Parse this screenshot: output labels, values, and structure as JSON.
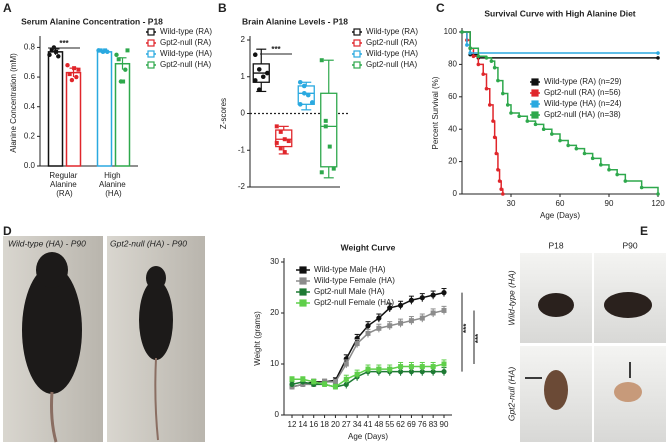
{
  "figure": {
    "panel_labels": [
      "A",
      "B",
      "C",
      "D",
      "E"
    ],
    "photo_labels": {
      "d": [
        "Wild-type (HA) - P90",
        "Gpt2-null (HA) - P90"
      ],
      "e_columns": [
        "P18",
        "P90"
      ],
      "e_rows": [
        "Wild-type (HA)",
        "Gpt2-null (HA)"
      ]
    }
  },
  "chart_data": [
    {
      "type": "bar",
      "title": "Serum Alanine Concentration - P18",
      "y_label": "Alanine Concentration (mM)",
      "categories": [
        "Regular Alanine (RA)",
        "High Alanine (HA)"
      ],
      "series": [
        {
          "name": "Wild-type (RA)",
          "color": "#111111",
          "values": [
            0.77,
            null
          ],
          "errors": [
            0.02,
            null
          ],
          "points": [
            [
              0.75,
              0.78,
              0.8,
              0.77,
              0.74
            ],
            null
          ]
        },
        {
          "name": "Gpt2-null (RA)",
          "color": "#e0262b",
          "values": [
            0.63,
            null
          ],
          "errors": [
            0.03,
            null
          ],
          "points": [
            [
              0.68,
              0.62,
              0.58,
              0.66,
              0.6,
              0.65
            ],
            null
          ]
        },
        {
          "name": "Wild-type (HA)",
          "color": "#2aa9e0",
          "values": [
            null,
            0.77
          ],
          "errors": [
            null,
            0.01
          ],
          "points": [
            null,
            [
              0.78,
              0.78,
              0.77,
              0.78,
              0.77
            ]
          ]
        },
        {
          "name": "Gpt2-null (HA)",
          "color": "#2ea84c",
          "values": [
            null,
            0.69
          ],
          "errors": [
            null,
            0.04
          ],
          "points": [
            null,
            [
              0.75,
              0.72,
              0.57,
              0.57,
              0.65,
              0.78
            ]
          ]
        }
      ],
      "ylim": [
        0,
        0.85
      ],
      "yticks": [
        {
          "value": 0,
          "label": "0.0"
        },
        0.2,
        0.4,
        0.6,
        0.8
      ],
      "annotations": [
        "***"
      ]
    },
    {
      "type": "box",
      "title": "Brain Alanine Levels - P18",
      "y_label": "Z-scores",
      "series": [
        {
          "name": "Wild-type (RA)",
          "color": "#111111",
          "min": 0.6,
          "q1": 0.85,
          "median": 1.1,
          "q3": 1.35,
          "max": 1.75,
          "points": [
            1.6,
            1.2,
            1.0,
            1.1,
            0.9,
            0.65
          ]
        },
        {
          "name": "Gpt2-null (RA)",
          "color": "#e0262b",
          "min": -1.1,
          "q1": -0.9,
          "median": -0.7,
          "q3": -0.45,
          "max": -0.35,
          "points": [
            -0.35,
            -0.5,
            -0.7,
            -0.75,
            -0.8,
            -0.95,
            -1.05
          ]
        },
        {
          "name": "Wild-type (HA)",
          "color": "#2aa9e0",
          "min": 0.1,
          "q1": 0.25,
          "median": 0.55,
          "q3": 0.75,
          "max": 0.85,
          "points": [
            0.85,
            0.75,
            0.5,
            0.3,
            0.25,
            0.55
          ]
        },
        {
          "name": "Gpt2-null (HA)",
          "color": "#2ea84c",
          "min": -1.75,
          "q1": -1.45,
          "median": -0.35,
          "q3": 0.55,
          "max": 1.45,
          "points": [
            1.45,
            -0.35,
            -0.9,
            -1.5,
            -1.6,
            -0.2
          ]
        }
      ],
      "ylim": [
        -2,
        2
      ],
      "yticks": [
        -2,
        -1,
        0,
        1,
        2
      ],
      "reference_line": 0,
      "annotations": [
        "***"
      ]
    },
    {
      "type": "line",
      "title": "Survival Curve with High Alanine Diet",
      "x_label": "Age (Days)",
      "y_label": "Percent Survival (%)",
      "series": [
        {
          "name": "Wild-type (RA) (n=29)",
          "color": "#111111",
          "x": [
            0,
            5,
            10,
            120
          ],
          "values": [
            100,
            86,
            84,
            84
          ]
        },
        {
          "name": "Gpt2-null (RA) (n=56)",
          "color": "#e0262b",
          "x": [
            0,
            3,
            5,
            7,
            10,
            13,
            15,
            17,
            19,
            20,
            21,
            22,
            23,
            24,
            25
          ],
          "values": [
            100,
            95,
            90,
            85,
            80,
            74,
            65,
            55,
            45,
            35,
            25,
            15,
            8,
            3,
            0
          ]
        },
        {
          "name": "Wild-type (HA) (n=24)",
          "color": "#2aa9e0",
          "x": [
            0,
            3,
            5,
            120
          ],
          "values": [
            100,
            92,
            87,
            87
          ]
        },
        {
          "name": "Gpt2-null (HA) (n=38)",
          "color": "#2ea84c",
          "x": [
            0,
            5,
            10,
            15,
            18,
            20,
            22,
            25,
            28,
            30,
            35,
            40,
            45,
            50,
            55,
            60,
            65,
            70,
            75,
            80,
            85,
            90,
            95,
            100,
            110,
            120
          ],
          "values": [
            100,
            90,
            85,
            84,
            82,
            78,
            70,
            62,
            55,
            50,
            48,
            45,
            43,
            40,
            37,
            33,
            30,
            28,
            25,
            22,
            18,
            15,
            12,
            8,
            4,
            0
          ]
        }
      ],
      "xlim": [
        0,
        120
      ],
      "xticks": [
        30,
        60,
        90,
        120
      ],
      "ylim": [
        0,
        100
      ],
      "yticks": [
        0,
        20,
        40,
        60,
        80,
        100
      ]
    },
    {
      "type": "line",
      "title": "Weight Curve",
      "x_label": "Age (Days)",
      "y_label": "Weight (grams)",
      "categories": [
        "12",
        "14",
        "16",
        "18",
        "20",
        "27",
        "34",
        "41",
        "48",
        "55",
        "62",
        "69",
        "76",
        "83",
        "90"
      ],
      "series": [
        {
          "name": "Wild-type Male (HA)",
          "color": "#111111",
          "values": [
            5.5,
            6,
            6.5,
            6.5,
            6.8,
            11,
            15,
            17.5,
            19,
            21,
            21.5,
            22.5,
            23,
            23.5,
            24
          ],
          "errors": [
            0.5,
            0.5,
            0.5,
            0.5,
            0.5,
            0.8,
            0.8,
            0.8,
            0.8,
            0.8,
            0.8,
            0.8,
            0.8,
            0.8,
            0.8
          ]
        },
        {
          "name": "Wild-type Female (HA)",
          "color": "#8c8c8c",
          "values": [
            5.5,
            6,
            6,
            6.5,
            6.5,
            10,
            14,
            16,
            17,
            17.5,
            18,
            18.5,
            19,
            20,
            20.5
          ],
          "errors": [
            0.5,
            0.5,
            0.5,
            0.5,
            0.5,
            0.8,
            0.8,
            0.8,
            0.8,
            0.8,
            0.8,
            0.8,
            0.8,
            0.8,
            0.8
          ]
        },
        {
          "name": "Gpt2-null Male (HA)",
          "color": "#1e7a34",
          "values": [
            6,
            6.5,
            6,
            6,
            5.5,
            6,
            7.5,
            8.5,
            8.5,
            8.5,
            8.5,
            8.5,
            8.5,
            8.5,
            8.5
          ],
          "errors": [
            0.5,
            0.5,
            0.5,
            0.5,
            0.5,
            0.8,
            0.8,
            0.8,
            0.8,
            0.8,
            0.8,
            0.8,
            0.8,
            0.8,
            0.8
          ]
        },
        {
          "name": "Gpt2-null Female (HA)",
          "color": "#5fcf4a",
          "values": [
            7,
            7,
            6.5,
            6,
            5.5,
            7,
            8,
            9,
            9,
            9,
            9.5,
            9.5,
            9.5,
            9.5,
            10
          ],
          "errors": [
            0.5,
            0.5,
            0.5,
            0.5,
            0.5,
            0.8,
            0.8,
            0.8,
            0.8,
            0.8,
            0.8,
            0.8,
            0.8,
            0.8,
            0.8
          ]
        }
      ],
      "ylim": [
        0,
        30
      ],
      "yticks": [
        0,
        10,
        20,
        30
      ],
      "annotations": [
        "***",
        "***"
      ]
    }
  ]
}
